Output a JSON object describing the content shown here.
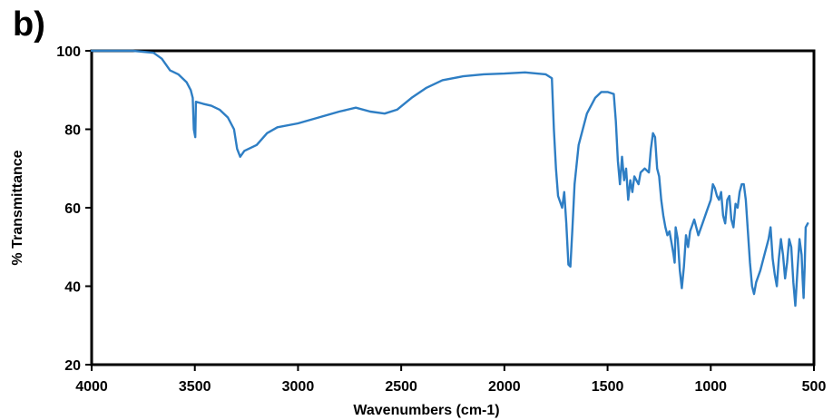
{
  "panel_label": "b)",
  "chart_data": {
    "type": "line",
    "title": "",
    "xlabel": "Wavenumbers (cm-1)",
    "ylabel": "% Transmittance",
    "xlim": [
      4000,
      500
    ],
    "x_reversed": true,
    "ylim": [
      20,
      100
    ],
    "x_ticks": [
      4000,
      3500,
      3000,
      2500,
      2000,
      1500,
      1000,
      500
    ],
    "y_ticks": [
      20,
      40,
      60,
      80,
      100
    ],
    "grid": false,
    "line_color": "#2E7EC4",
    "series": [
      {
        "name": "",
        "points": [
          [
            4000,
            100
          ],
          [
            3800,
            100
          ],
          [
            3700,
            99.5
          ],
          [
            3660,
            98
          ],
          [
            3620,
            95
          ],
          [
            3580,
            94
          ],
          [
            3540,
            92
          ],
          [
            3520,
            90
          ],
          [
            3510,
            88
          ],
          [
            3505,
            80
          ],
          [
            3498,
            78
          ],
          [
            3495,
            87
          ],
          [
            3460,
            86.5
          ],
          [
            3420,
            86
          ],
          [
            3380,
            85
          ],
          [
            3340,
            83
          ],
          [
            3310,
            80
          ],
          [
            3295,
            75
          ],
          [
            3280,
            73
          ],
          [
            3260,
            74.5
          ],
          [
            3200,
            76
          ],
          [
            3150,
            79
          ],
          [
            3100,
            80.5
          ],
          [
            3000,
            81.5
          ],
          [
            2900,
            83
          ],
          [
            2800,
            84.5
          ],
          [
            2720,
            85.5
          ],
          [
            2650,
            84.5
          ],
          [
            2580,
            84
          ],
          [
            2520,
            85
          ],
          [
            2450,
            88
          ],
          [
            2380,
            90.5
          ],
          [
            2300,
            92.5
          ],
          [
            2200,
            93.5
          ],
          [
            2100,
            94
          ],
          [
            2000,
            94.2
          ],
          [
            1900,
            94.5
          ],
          [
            1800,
            94
          ],
          [
            1770,
            93
          ],
          [
            1760,
            80
          ],
          [
            1750,
            70
          ],
          [
            1740,
            63
          ],
          [
            1720,
            60
          ],
          [
            1710,
            64
          ],
          [
            1700,
            56
          ],
          [
            1690,
            45.5
          ],
          [
            1680,
            45
          ],
          [
            1670,
            55
          ],
          [
            1660,
            66
          ],
          [
            1640,
            76
          ],
          [
            1600,
            84
          ],
          [
            1560,
            88
          ],
          [
            1530,
            89.5
          ],
          [
            1500,
            89.5
          ],
          [
            1470,
            89
          ],
          [
            1460,
            82
          ],
          [
            1450,
            72
          ],
          [
            1440,
            66
          ],
          [
            1430,
            73
          ],
          [
            1420,
            67
          ],
          [
            1410,
            70
          ],
          [
            1400,
            62
          ],
          [
            1390,
            67
          ],
          [
            1380,
            64
          ],
          [
            1370,
            68
          ],
          [
            1350,
            66
          ],
          [
            1340,
            69
          ],
          [
            1320,
            70
          ],
          [
            1300,
            69
          ],
          [
            1290,
            75
          ],
          [
            1280,
            79
          ],
          [
            1270,
            78
          ],
          [
            1260,
            70
          ],
          [
            1250,
            68
          ],
          [
            1240,
            62
          ],
          [
            1230,
            58
          ],
          [
            1220,
            55
          ],
          [
            1210,
            53
          ],
          [
            1200,
            54
          ],
          [
            1190,
            51
          ],
          [
            1180,
            48
          ],
          [
            1175,
            46
          ],
          [
            1170,
            55
          ],
          [
            1160,
            52
          ],
          [
            1150,
            44
          ],
          [
            1140,
            39.5
          ],
          [
            1130,
            45
          ],
          [
            1120,
            53
          ],
          [
            1110,
            50
          ],
          [
            1100,
            54
          ],
          [
            1080,
            57
          ],
          [
            1060,
            53
          ],
          [
            1040,
            56
          ],
          [
            1020,
            59
          ],
          [
            1000,
            62
          ],
          [
            990,
            66
          ],
          [
            980,
            65
          ],
          [
            970,
            63
          ],
          [
            960,
            62
          ],
          [
            950,
            64
          ],
          [
            940,
            58
          ],
          [
            930,
            56
          ],
          [
            920,
            62
          ],
          [
            910,
            63
          ],
          [
            900,
            57
          ],
          [
            890,
            55
          ],
          [
            880,
            61
          ],
          [
            870,
            60
          ],
          [
            860,
            64
          ],
          [
            850,
            66
          ],
          [
            840,
            66
          ],
          [
            830,
            62
          ],
          [
            820,
            54
          ],
          [
            810,
            46
          ],
          [
            800,
            40
          ],
          [
            790,
            38
          ],
          [
            780,
            41
          ],
          [
            760,
            44
          ],
          [
            740,
            48
          ],
          [
            720,
            52
          ],
          [
            710,
            55
          ],
          [
            700,
            47
          ],
          [
            690,
            43
          ],
          [
            680,
            40
          ],
          [
            670,
            47
          ],
          [
            660,
            52
          ],
          [
            650,
            48
          ],
          [
            640,
            42
          ],
          [
            630,
            46
          ],
          [
            620,
            52
          ],
          [
            610,
            50
          ],
          [
            600,
            41
          ],
          [
            590,
            35
          ],
          [
            580,
            44
          ],
          [
            570,
            52
          ],
          [
            560,
            48
          ],
          [
            555,
            42
          ],
          [
            550,
            37
          ],
          [
            545,
            45
          ],
          [
            540,
            55
          ],
          [
            530,
            56
          ]
        ]
      }
    ]
  }
}
